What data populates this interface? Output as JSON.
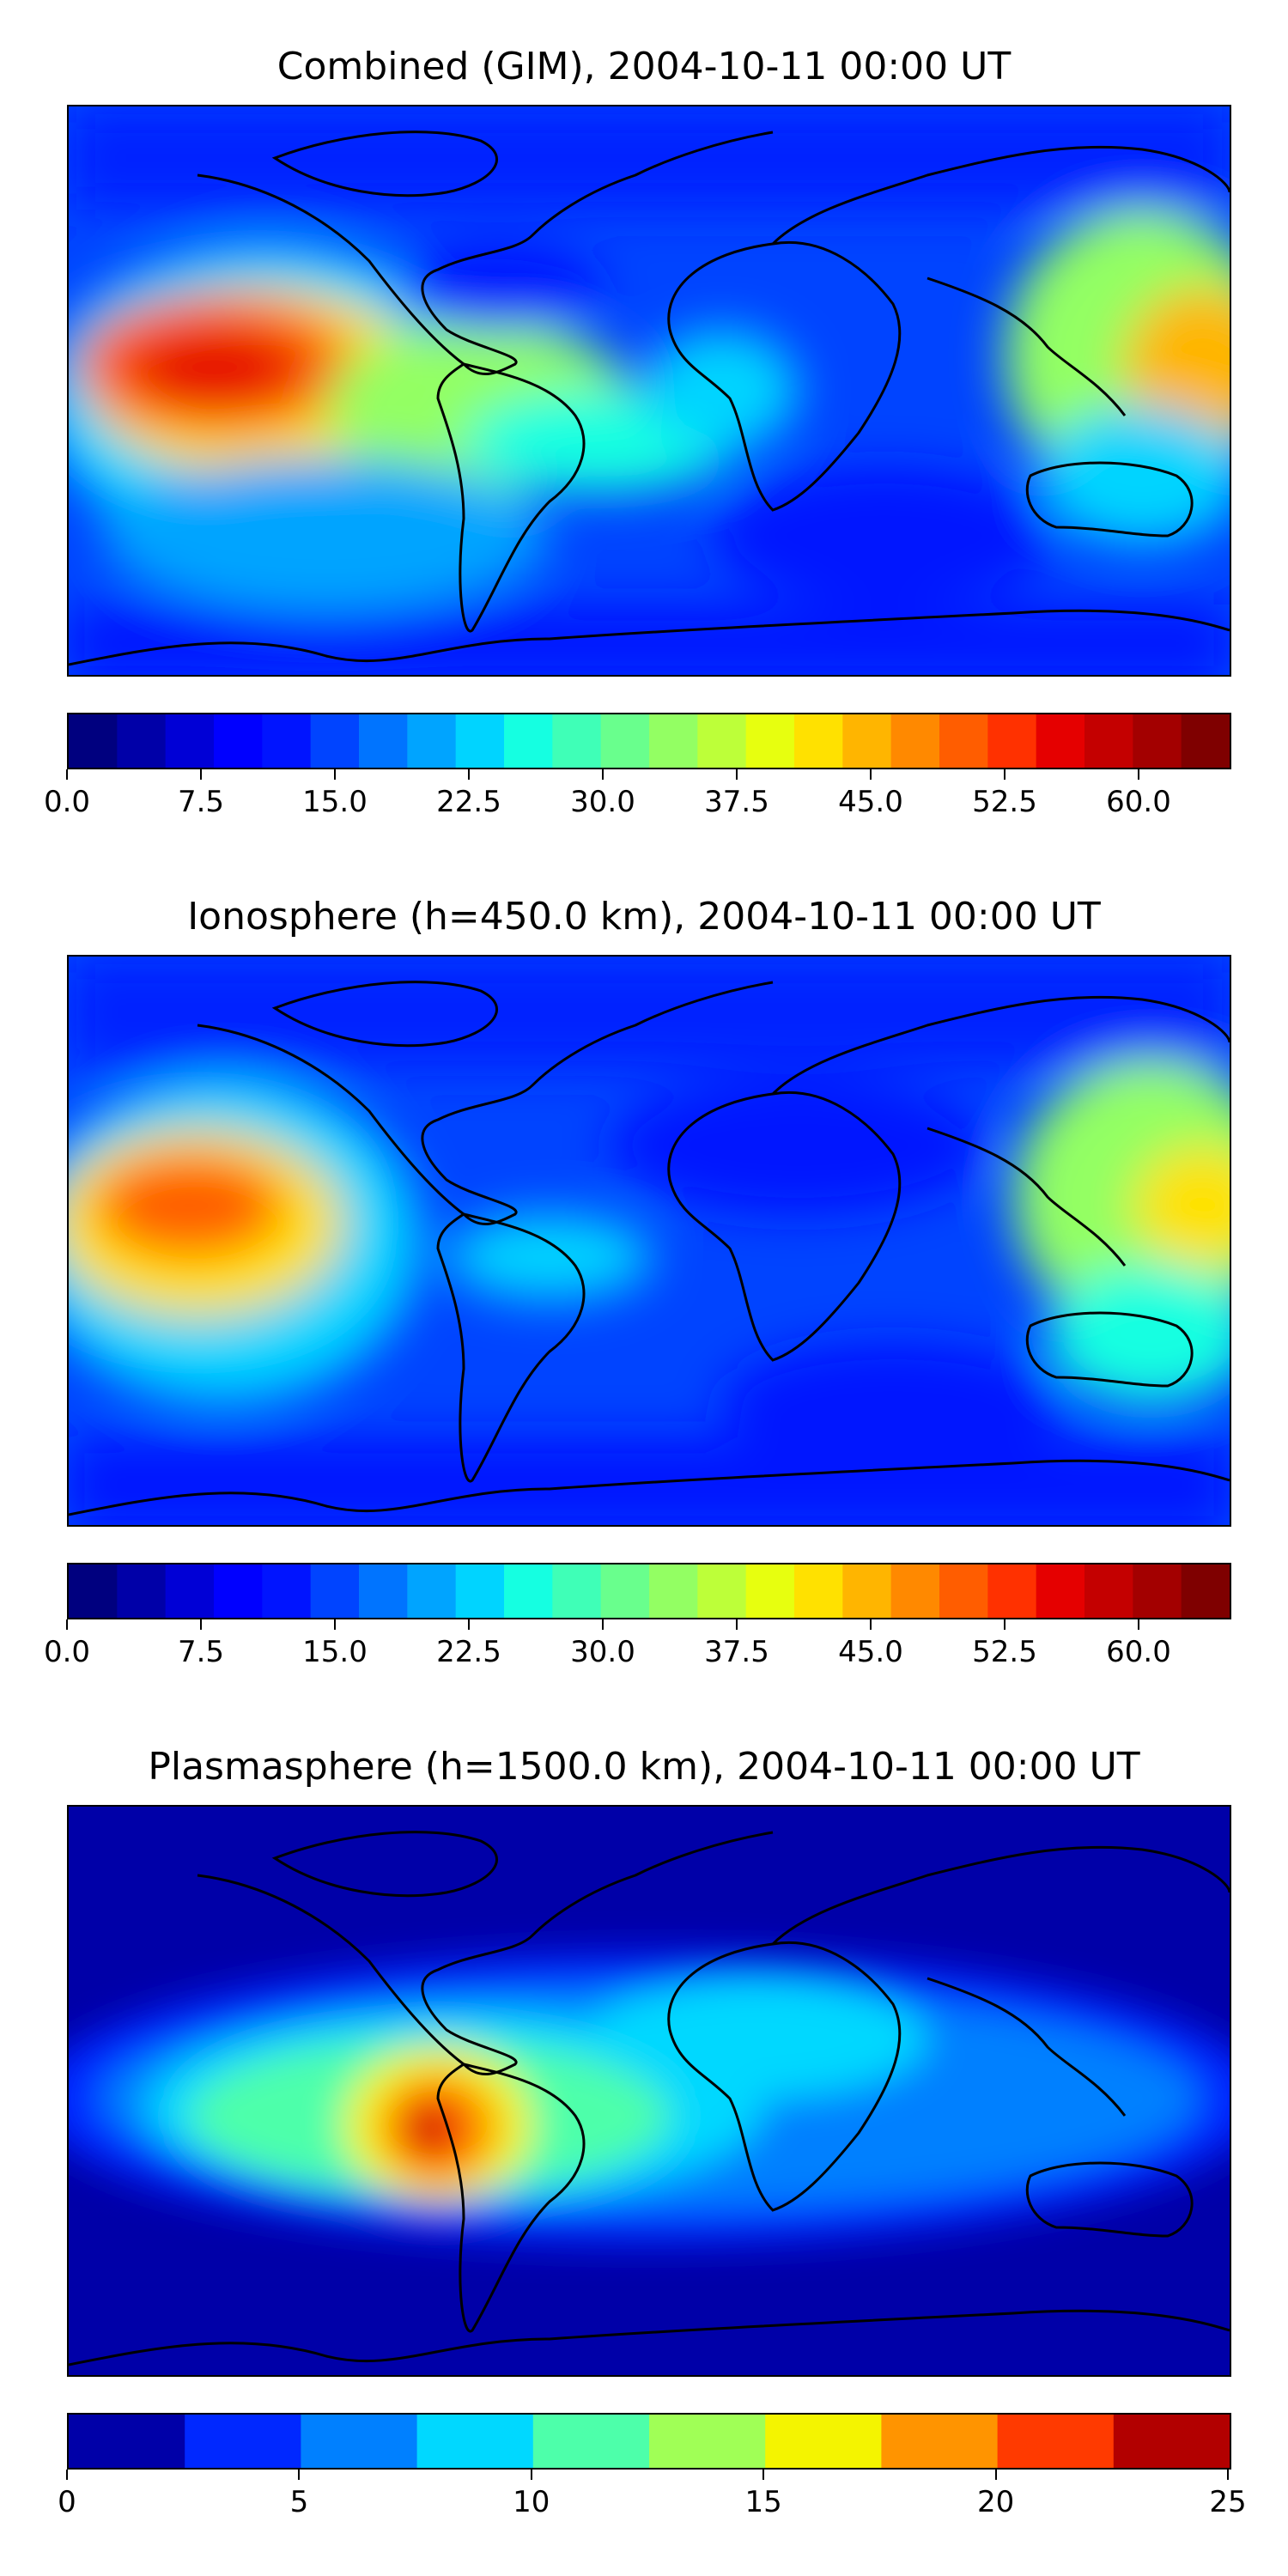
{
  "panels": [
    {
      "title": "Combined (GIM), 2004-10-11 00:00 UT",
      "colorbar": {
        "min": 0,
        "max": 65,
        "levels": 24,
        "tick_labels": [
          "0.0",
          "7.5",
          "15.0",
          "22.5",
          "30.0",
          "37.5",
          "45.0",
          "52.5",
          "60.0"
        ],
        "tick_values": [
          0,
          7.5,
          15,
          22.5,
          30,
          37.5,
          45,
          52.5,
          60
        ]
      },
      "colors": [
        "#00007f",
        "#0000a8",
        "#0000d6",
        "#0000ff",
        "#0014ff",
        "#0044ff",
        "#0074ff",
        "#00a4ff",
        "#00d4ff",
        "#15ffe1",
        "#3fffb7",
        "#69ff8d",
        "#93ff63",
        "#bdff39",
        "#e7ff0f",
        "#ffe100",
        "#ffb500",
        "#ff8900",
        "#ff5d00",
        "#ff3100",
        "#e50000",
        "#c40000",
        "#a30000",
        "#7f0000"
      ]
    },
    {
      "title": "Ionosphere  (h=450.0 km), 2004-10-11 00:00 UT",
      "colorbar": {
        "min": 0,
        "max": 65,
        "levels": 24,
        "tick_labels": [
          "0.0",
          "7.5",
          "15.0",
          "22.5",
          "30.0",
          "37.5",
          "45.0",
          "52.5",
          "60.0"
        ],
        "tick_values": [
          0,
          7.5,
          15,
          22.5,
          30,
          37.5,
          45,
          52.5,
          60
        ]
      },
      "colors": [
        "#00007f",
        "#0000a8",
        "#0000d6",
        "#0000ff",
        "#0014ff",
        "#0044ff",
        "#0074ff",
        "#00a4ff",
        "#00d4ff",
        "#15ffe1",
        "#3fffb7",
        "#69ff8d",
        "#93ff63",
        "#bdff39",
        "#e7ff0f",
        "#ffe100",
        "#ffb500",
        "#ff8900",
        "#ff5d00",
        "#ff3100",
        "#e50000",
        "#c40000",
        "#a30000",
        "#7f0000"
      ]
    },
    {
      "title": "Plasmasphere (h=1500.0 km), 2004-10-11 00:00 UT",
      "colorbar": {
        "min": 0,
        "max": 25,
        "levels": 10,
        "tick_labels": [
          "0",
          "5",
          "10",
          "15",
          "20",
          "25"
        ],
        "tick_values": [
          0,
          5,
          10,
          15,
          20,
          25
        ]
      },
      "colors": [
        "#0000a8",
        "#0028ff",
        "#0080ff",
        "#00d8ff",
        "#4dffaa",
        "#a0ff56",
        "#f4f400",
        "#ff9400",
        "#ff3a00",
        "#b20000"
      ]
    }
  ]
}
